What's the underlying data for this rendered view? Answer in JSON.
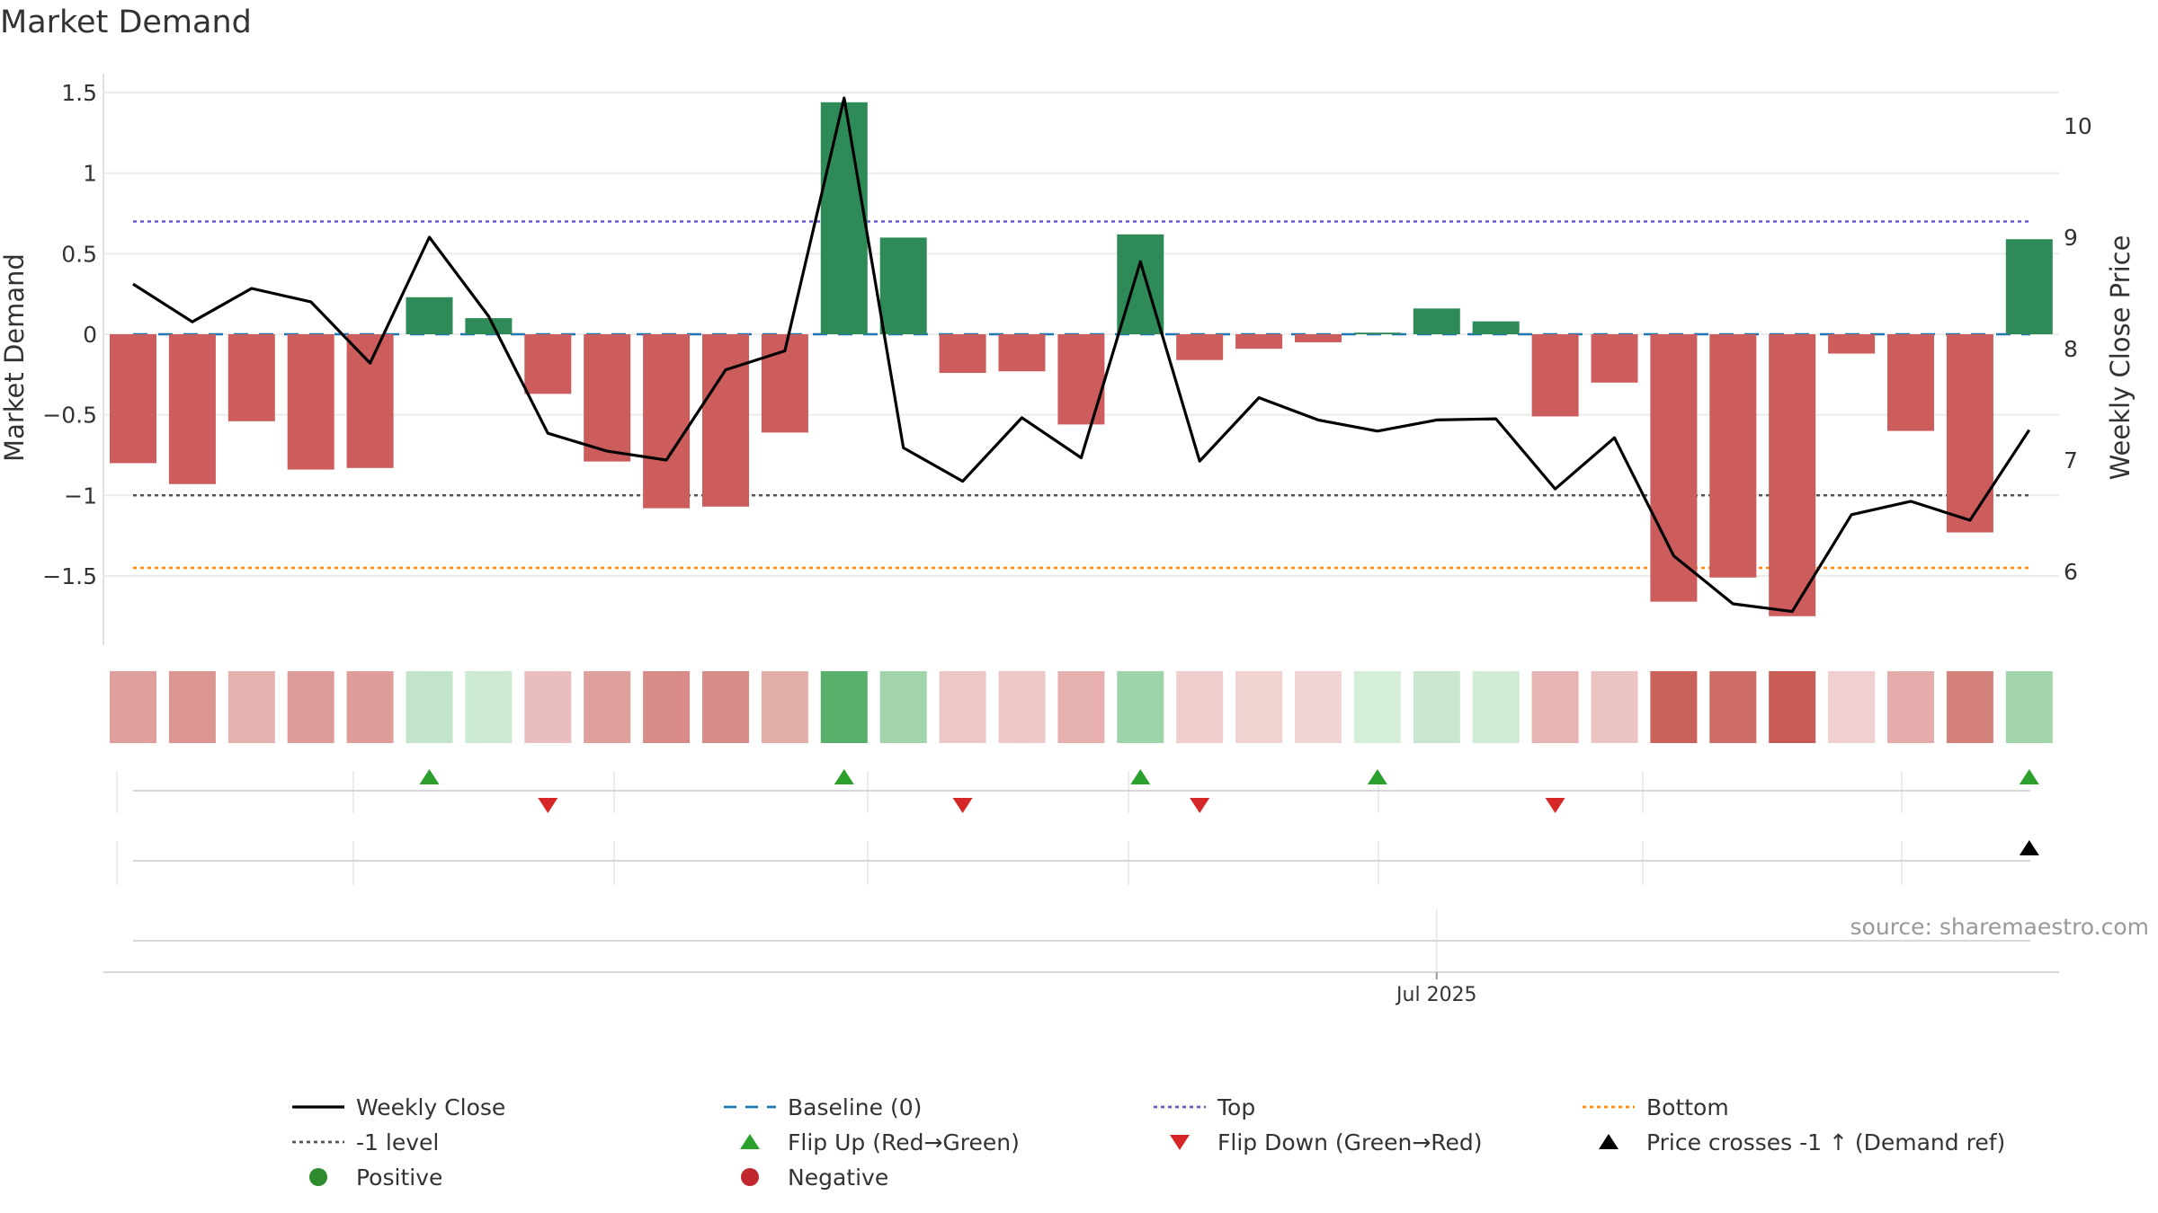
{
  "chart_data": {
    "type": "bar",
    "title": "Market Demand",
    "ylabel": "Market Demand",
    "y2label": "Weekly Close Price",
    "ylim": [
      -1.95,
      1.6
    ],
    "y2lim": [
      5.3,
      10.6
    ],
    "yticks": [
      "1.5",
      "1",
      "0.5",
      "0",
      "−1",
      "−1.5"
    ],
    "ytick_values": [
      1.5,
      1,
      0.5,
      0,
      -1,
      -1.5
    ],
    "ytick_half": "−0.5",
    "y2ticks": [
      10,
      9,
      8,
      7,
      6
    ],
    "xtick_label": "Jul 2025",
    "xtick_index": 22,
    "source": "source: sharemaestro.com",
    "reference_lines": {
      "top": 0.7,
      "baseline": 0,
      "minus_one": -1,
      "bottom": -1.45
    },
    "demand": [
      -0.8,
      -0.93,
      -0.54,
      -0.84,
      -0.83,
      0.23,
      0.1,
      -0.37,
      -0.79,
      -1.08,
      -1.07,
      -0.61,
      1.44,
      0.6,
      -0.24,
      -0.23,
      -0.56,
      0.62,
      -0.16,
      -0.09,
      -0.05,
      0.01,
      0.16,
      0.08,
      -0.51,
      -0.3,
      -1.66,
      -1.51,
      -1.75,
      -0.12,
      -0.6,
      -1.23,
      0.59
    ],
    "close": [
      8.58,
      8.24,
      8.54,
      8.42,
      7.87,
      9.0,
      8.29,
      7.24,
      7.08,
      7.0,
      7.81,
      7.98,
      10.25,
      7.11,
      6.81,
      7.38,
      7.02,
      8.78,
      6.99,
      7.56,
      7.36,
      7.26,
      7.36,
      7.37,
      6.74,
      7.2,
      6.14,
      5.71,
      5.64,
      6.51,
      6.63,
      6.46,
      7.27
    ],
    "flip_up_indices": [
      5,
      12,
      17,
      21,
      32
    ],
    "flip_down_indices": [
      7,
      14,
      18,
      24
    ],
    "price_cross_indices": [
      32
    ],
    "colors": {
      "positive_bar": "#2e8b57",
      "negative_bar": "#cd5c5c",
      "close_line": "#000000",
      "baseline": "#1f77b4",
      "top": "#6a5acd",
      "bottom": "#ff8c00",
      "minus_one": "#555555",
      "flip_up": "#2ca02c",
      "flip_down": "#d62728",
      "cross": "#000000"
    },
    "legend": [
      {
        "label": "Weekly Close",
        "kind": "line-solid",
        "color": "#000000"
      },
      {
        "label": "Baseline (0)",
        "kind": "line-dash",
        "color": "#1f77b4"
      },
      {
        "label": "Top",
        "kind": "line-dot",
        "color": "#6a5acd"
      },
      {
        "label": "Bottom",
        "kind": "line-dot",
        "color": "#ff8c00"
      },
      {
        "label": "-1 level",
        "kind": "line-dot",
        "color": "#555555"
      },
      {
        "label": "Flip Up (Red→Green)",
        "kind": "tri-up",
        "color": "#2ca02c"
      },
      {
        "label": "Flip Down (Green→Red)",
        "kind": "tri-down",
        "color": "#d62728"
      },
      {
        "label": "Price crosses -1 ↑ (Demand ref)",
        "kind": "tri-up",
        "color": "#000000"
      },
      {
        "label": "Positive",
        "kind": "dot",
        "color": "#2e8b2e"
      },
      {
        "label": "Negative",
        "kind": "dot",
        "color": "#c0282d"
      }
    ]
  }
}
